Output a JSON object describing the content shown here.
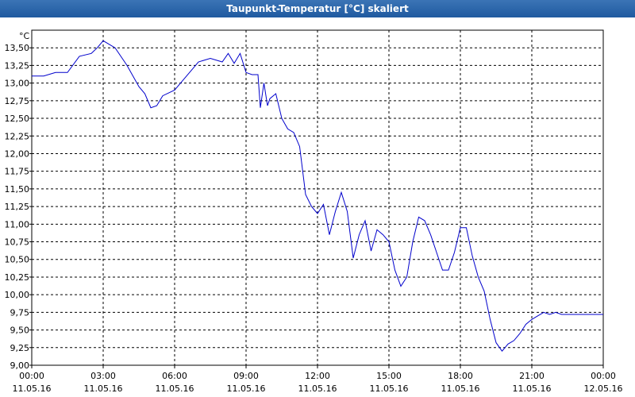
{
  "window": {
    "title": "Taupunkt-Temperatur [°C] skaliert"
  },
  "colors": {
    "title_bar": "#1f5aa0",
    "line": "#0000cc",
    "grid": "#000000",
    "background": "#ffffff"
  },
  "chart_data": {
    "type": "line",
    "title": "Taupunkt-Temperatur [°C] skaliert",
    "ylabel": "°C",
    "xlabel": "",
    "ylim": [
      9.0,
      13.75
    ],
    "xlim_hours": [
      0,
      24
    ],
    "grid": true,
    "y_ticks": [
      "9,00",
      "9,25",
      "9,50",
      "9,75",
      "10,00",
      "10,25",
      "10,50",
      "10,75",
      "11,00",
      "11,25",
      "11,50",
      "11,75",
      "12,00",
      "12,25",
      "12,50",
      "12,75",
      "13,00",
      "13,25",
      "13,50"
    ],
    "x_ticks": [
      {
        "time": "00:00",
        "date": "11.05.16"
      },
      {
        "time": "03:00",
        "date": "11.05.16"
      },
      {
        "time": "06:00",
        "date": "11.05.16"
      },
      {
        "time": "09:00",
        "date": "11.05.16"
      },
      {
        "time": "12:00",
        "date": "11.05.16"
      },
      {
        "time": "15:00",
        "date": "11.05.16"
      },
      {
        "time": "18:00",
        "date": "11.05.16"
      },
      {
        "time": "21:00",
        "date": "11.05.16"
      },
      {
        "time": "00:00",
        "date": "12.05.16"
      }
    ],
    "series": [
      {
        "x": [
          0.0,
          0.5,
          1.0,
          1.5,
          2.0,
          2.5,
          2.75,
          3.0,
          3.25,
          3.5,
          4.0,
          4.5,
          4.75,
          5.0,
          5.25,
          5.5,
          6.0,
          6.25,
          6.75,
          7.0,
          7.5,
          8.0,
          8.25,
          8.5,
          8.75,
          9.0,
          9.25,
          9.5,
          9.6,
          9.75,
          9.9,
          10.0,
          10.25,
          10.5,
          10.75,
          11.0,
          11.25,
          11.5,
          11.75,
          12.0,
          12.25,
          12.5,
          12.75,
          13.0,
          13.25,
          13.5,
          13.75,
          14.0,
          14.25,
          14.5,
          14.75,
          15.0,
          15.25,
          15.5,
          15.75,
          16.0,
          16.25,
          16.5,
          16.75,
          17.0,
          17.25,
          17.5,
          17.75,
          18.0,
          18.25,
          18.5,
          18.75,
          19.0,
          19.25,
          19.5,
          19.75,
          20.0,
          20.25,
          20.5,
          20.75,
          21.0,
          21.25,
          21.5,
          21.75,
          22.0,
          22.25,
          22.5,
          22.75,
          23.0,
          23.25,
          23.5,
          23.75,
          24.0
        ],
        "y": [
          13.1,
          13.1,
          13.15,
          13.15,
          13.38,
          13.42,
          13.5,
          13.6,
          13.55,
          13.5,
          13.25,
          12.95,
          12.85,
          12.65,
          12.68,
          12.82,
          12.9,
          13.0,
          13.2,
          13.3,
          13.35,
          13.3,
          13.42,
          13.28,
          13.42,
          13.15,
          13.12,
          13.12,
          12.65,
          13.0,
          12.68,
          12.78,
          12.85,
          12.5,
          12.35,
          12.3,
          12.1,
          11.42,
          11.25,
          11.15,
          11.28,
          10.85,
          11.18,
          11.45,
          11.18,
          10.52,
          10.85,
          11.05,
          10.62,
          10.92,
          10.85,
          10.75,
          10.35,
          10.12,
          10.25,
          10.75,
          11.1,
          11.05,
          10.85,
          10.6,
          10.35,
          10.35,
          10.6,
          10.95,
          10.95,
          10.55,
          10.25,
          10.05,
          9.65,
          9.32,
          9.2,
          9.3,
          9.35,
          9.45,
          9.58,
          9.65,
          9.7,
          9.75,
          9.72,
          9.75,
          9.72,
          9.72,
          9.72,
          9.72,
          9.72,
          9.72,
          9.72,
          9.72
        ]
      }
    ]
  }
}
